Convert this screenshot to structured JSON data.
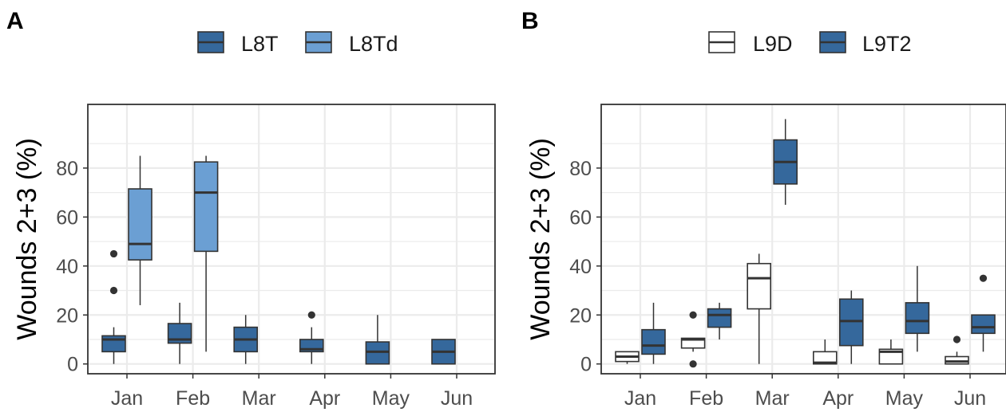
{
  "colors": {
    "L8T": "#35689c",
    "L8Td": "#6b9fd3",
    "L9D": "#ffffff",
    "L9T2": "#35689c",
    "grid": "#ebebeb",
    "border": "#333333"
  },
  "chart_data": [
    {
      "type": "box",
      "panel_label": "A",
      "ylabel": "Wounds 2+3 (%)",
      "xlabel": "",
      "ylim": [
        -4,
        106
      ],
      "yticks": [
        0,
        20,
        40,
        60,
        80
      ],
      "grid": true,
      "legend_position": "top",
      "categories": [
        "Jan",
        "Feb",
        "Mar",
        "Apr",
        "May",
        "Jun"
      ],
      "series": [
        {
          "name": "L8T",
          "boxes": [
            {
              "category": "Jan",
              "min": 0,
              "q1": 5,
              "median": 10,
              "q3": 11.5,
              "max": 15,
              "outliers": [
                30,
                45
              ]
            },
            {
              "category": "Feb",
              "min": 0,
              "q1": 8.5,
              "median": 10,
              "q3": 16.5,
              "max": 25,
              "outliers": []
            },
            {
              "category": "Mar",
              "min": 0,
              "q1": 5,
              "median": 10,
              "q3": 15,
              "max": 20,
              "outliers": []
            },
            {
              "category": "Apr",
              "min": 0,
              "q1": 5,
              "median": 6,
              "q3": 10,
              "max": 15,
              "outliers": [
                20
              ]
            },
            {
              "category": "May",
              "min": 0,
              "q1": 0,
              "median": 5,
              "q3": 9,
              "max": 20,
              "outliers": []
            },
            {
              "category": "Jun",
              "min": 0,
              "q1": 0,
              "median": 5,
              "q3": 10,
              "max": 10,
              "outliers": []
            }
          ]
        },
        {
          "name": "L8Td",
          "boxes": [
            {
              "category": "Jan",
              "min": 24,
              "q1": 42.5,
              "median": 49,
              "q3": 71.5,
              "max": 85,
              "outliers": []
            },
            {
              "category": "Feb",
              "min": 5,
              "q1": 46,
              "median": 70,
              "q3": 82.5,
              "max": 85,
              "outliers": []
            }
          ]
        }
      ]
    },
    {
      "type": "box",
      "panel_label": "B",
      "ylabel": "Wounds 2+3 (%)",
      "xlabel": "",
      "ylim": [
        -4,
        106
      ],
      "yticks": [
        0,
        20,
        40,
        60,
        80
      ],
      "grid": true,
      "legend_position": "top",
      "categories": [
        "Jan",
        "Feb",
        "Mar",
        "Apr",
        "May",
        "Jun"
      ],
      "series": [
        {
          "name": "L9D",
          "boxes": [
            {
              "category": "Jan",
              "min": 0,
              "q1": 1,
              "median": 3,
              "q3": 5,
              "max": 5,
              "outliers": []
            },
            {
              "category": "Feb",
              "min": 5,
              "q1": 6.5,
              "median": 10,
              "q3": 10.5,
              "max": 10.5,
              "outliers": [
                0,
                20
              ]
            },
            {
              "category": "Mar",
              "min": 0,
              "q1": 22.5,
              "median": 35,
              "q3": 41,
              "max": 45,
              "outliers": []
            },
            {
              "category": "Apr",
              "min": 0,
              "q1": 0,
              "median": 0.5,
              "q3": 5,
              "max": 10,
              "outliers": []
            },
            {
              "category": "May",
              "min": 0,
              "q1": 0,
              "median": 5,
              "q3": 6,
              "max": 10,
              "outliers": []
            },
            {
              "category": "Jun",
              "min": 0,
              "q1": 0,
              "median": 1,
              "q3": 3,
              "max": 5,
              "outliers": [
                10
              ]
            }
          ]
        },
        {
          "name": "L9T2",
          "boxes": [
            {
              "category": "Jan",
              "min": 0,
              "q1": 4,
              "median": 7.5,
              "q3": 14,
              "max": 25,
              "outliers": []
            },
            {
              "category": "Feb",
              "min": 10,
              "q1": 15,
              "median": 20,
              "q3": 22.5,
              "max": 25,
              "outliers": []
            },
            {
              "category": "Mar",
              "min": 65,
              "q1": 73.5,
              "median": 82.5,
              "q3": 91.5,
              "max": 100,
              "outliers": []
            },
            {
              "category": "Apr",
              "min": 0,
              "q1": 7.5,
              "median": 17.5,
              "q3": 26.5,
              "max": 30,
              "outliers": []
            },
            {
              "category": "May",
              "min": 5,
              "q1": 12.5,
              "median": 17.5,
              "q3": 25,
              "max": 40,
              "outliers": []
            },
            {
              "category": "Jun",
              "min": 5,
              "q1": 12.5,
              "median": 15,
              "q3": 20,
              "max": 20,
              "outliers": [
                35
              ]
            }
          ]
        }
      ]
    }
  ]
}
